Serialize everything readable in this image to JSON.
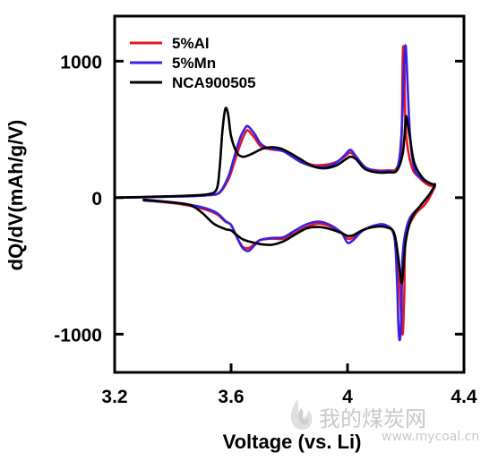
{
  "chart_data": {
    "type": "line",
    "xlabel": "Voltage (vs. Li)",
    "ylabel": "dQ/dV(mAh/g/V)",
    "xlim": [
      3.2,
      4.4
    ],
    "ylim": [
      -1280,
      1330
    ],
    "x_ticks": [
      3.2,
      3.6,
      4.0,
      4.4
    ],
    "x_tick_labels": [
      "3.2",
      "3.6",
      "4",
      "4.4"
    ],
    "y_ticks": [
      -1000,
      0,
      1000
    ],
    "y_tick_labels": [
      "-1000",
      "0",
      "1000"
    ],
    "grid": false,
    "legend_position": "top-left",
    "series": [
      {
        "name": "5%Al",
        "color": "#e8141e",
        "charge": [
          [
            3.2,
            0
          ],
          [
            3.35,
            5
          ],
          [
            3.45,
            10
          ],
          [
            3.52,
            18
          ],
          [
            3.56,
            35
          ],
          [
            3.59,
            130
          ],
          [
            3.61,
            250
          ],
          [
            3.63,
            380
          ],
          [
            3.65,
            480
          ],
          [
            3.66,
            490
          ],
          [
            3.68,
            440
          ],
          [
            3.7,
            380
          ],
          [
            3.72,
            360
          ],
          [
            3.75,
            350
          ],
          [
            3.78,
            340
          ],
          [
            3.81,
            310
          ],
          [
            3.84,
            270
          ],
          [
            3.88,
            240
          ],
          [
            3.92,
            240
          ],
          [
            3.96,
            260
          ],
          [
            3.99,
            300
          ],
          [
            4.01,
            330
          ],
          [
            4.03,
            290
          ],
          [
            4.06,
            220
          ],
          [
            4.1,
            200
          ],
          [
            4.14,
            200
          ],
          [
            4.17,
            220
          ],
          [
            4.185,
            400
          ],
          [
            4.19,
            1060
          ],
          [
            4.195,
            1000
          ],
          [
            4.2,
            500
          ],
          [
            4.22,
            230
          ],
          [
            4.25,
            140
          ],
          [
            4.28,
            90
          ],
          [
            4.3,
            90
          ]
        ],
        "discharge": [
          [
            3.3,
            -20
          ],
          [
            3.42,
            -45
          ],
          [
            3.5,
            -80
          ],
          [
            3.55,
            -120
          ],
          [
            3.58,
            -175
          ],
          [
            3.6,
            -200
          ],
          [
            3.62,
            -290
          ],
          [
            3.64,
            -360
          ],
          [
            3.66,
            -370
          ],
          [
            3.68,
            -340
          ],
          [
            3.7,
            -310
          ],
          [
            3.74,
            -300
          ],
          [
            3.78,
            -300
          ],
          [
            3.82,
            -260
          ],
          [
            3.86,
            -215
          ],
          [
            3.9,
            -190
          ],
          [
            3.94,
            -210
          ],
          [
            3.98,
            -255
          ],
          [
            4.0,
            -300
          ],
          [
            4.02,
            -290
          ],
          [
            4.05,
            -240
          ],
          [
            4.09,
            -210
          ],
          [
            4.13,
            -210
          ],
          [
            4.16,
            -260
          ],
          [
            4.175,
            -500
          ],
          [
            4.185,
            -900
          ],
          [
            4.19,
            -990
          ],
          [
            4.195,
            -700
          ],
          [
            4.2,
            -300
          ],
          [
            4.23,
            -130
          ],
          [
            4.27,
            -40
          ],
          [
            4.3,
            80
          ]
        ]
      },
      {
        "name": "5%Mn",
        "color": "#3a1fe6",
        "charge": [
          [
            3.2,
            0
          ],
          [
            3.35,
            5
          ],
          [
            3.45,
            10
          ],
          [
            3.52,
            18
          ],
          [
            3.56,
            38
          ],
          [
            3.59,
            150
          ],
          [
            3.61,
            290
          ],
          [
            3.63,
            430
          ],
          [
            3.65,
            515
          ],
          [
            3.66,
            520
          ],
          [
            3.68,
            470
          ],
          [
            3.7,
            400
          ],
          [
            3.72,
            370
          ],
          [
            3.75,
            355
          ],
          [
            3.78,
            340
          ],
          [
            3.81,
            300
          ],
          [
            3.84,
            260
          ],
          [
            3.88,
            230
          ],
          [
            3.92,
            225
          ],
          [
            3.96,
            255
          ],
          [
            3.99,
            310
          ],
          [
            4.01,
            350
          ],
          [
            4.03,
            300
          ],
          [
            4.06,
            225
          ],
          [
            4.1,
            195
          ],
          [
            4.14,
            195
          ],
          [
            4.17,
            210
          ],
          [
            4.185,
            450
          ],
          [
            4.195,
            1000
          ],
          [
            4.2,
            1110
          ],
          [
            4.205,
            900
          ],
          [
            4.215,
            450
          ],
          [
            4.23,
            210
          ],
          [
            4.26,
            130
          ],
          [
            4.29,
            100
          ],
          [
            4.3,
            95
          ]
        ],
        "discharge": [
          [
            3.3,
            -20
          ],
          [
            3.42,
            -40
          ],
          [
            3.5,
            -70
          ],
          [
            3.55,
            -110
          ],
          [
            3.58,
            -170
          ],
          [
            3.6,
            -200
          ],
          [
            3.62,
            -290
          ],
          [
            3.64,
            -370
          ],
          [
            3.66,
            -390
          ],
          [
            3.68,
            -350
          ],
          [
            3.7,
            -310
          ],
          [
            3.74,
            -295
          ],
          [
            3.78,
            -290
          ],
          [
            3.82,
            -240
          ],
          [
            3.86,
            -195
          ],
          [
            3.9,
            -175
          ],
          [
            3.94,
            -200
          ],
          [
            3.98,
            -260
          ],
          [
            4.0,
            -330
          ],
          [
            4.02,
            -310
          ],
          [
            4.05,
            -245
          ],
          [
            4.09,
            -205
          ],
          [
            4.13,
            -200
          ],
          [
            4.16,
            -280
          ],
          [
            4.17,
            -600
          ],
          [
            4.175,
            -950
          ],
          [
            4.18,
            -1040
          ],
          [
            4.185,
            -850
          ],
          [
            4.19,
            -400
          ],
          [
            4.21,
            -170
          ],
          [
            4.25,
            -60
          ],
          [
            4.28,
            20
          ],
          [
            4.3,
            90
          ]
        ]
      },
      {
        "name": "NCA900505",
        "color": "#000000",
        "charge": [
          [
            3.2,
            0
          ],
          [
            3.35,
            8
          ],
          [
            3.45,
            15
          ],
          [
            3.52,
            25
          ],
          [
            3.55,
            60
          ],
          [
            3.56,
            200
          ],
          [
            3.57,
            480
          ],
          [
            3.58,
            650
          ],
          [
            3.59,
            610
          ],
          [
            3.6,
            450
          ],
          [
            3.62,
            330
          ],
          [
            3.64,
            300
          ],
          [
            3.66,
            310
          ],
          [
            3.68,
            330
          ],
          [
            3.71,
            360
          ],
          [
            3.74,
            370
          ],
          [
            3.77,
            360
          ],
          [
            3.8,
            330
          ],
          [
            3.84,
            280
          ],
          [
            3.88,
            230
          ],
          [
            3.92,
            215
          ],
          [
            3.96,
            235
          ],
          [
            3.99,
            275
          ],
          [
            4.01,
            300
          ],
          [
            4.03,
            280
          ],
          [
            4.06,
            210
          ],
          [
            4.1,
            185
          ],
          [
            4.14,
            185
          ],
          [
            4.17,
            200
          ],
          [
            4.19,
            330
          ],
          [
            4.2,
            580
          ],
          [
            4.205,
            560
          ],
          [
            4.215,
            430
          ],
          [
            4.23,
            250
          ],
          [
            4.26,
            140
          ],
          [
            4.29,
            100
          ],
          [
            4.3,
            100
          ]
        ],
        "discharge": [
          [
            3.3,
            -15
          ],
          [
            3.4,
            -35
          ],
          [
            3.46,
            -55
          ],
          [
            3.5,
            -110
          ],
          [
            3.54,
            -190
          ],
          [
            3.58,
            -230
          ],
          [
            3.6,
            -240
          ],
          [
            3.62,
            -275
          ],
          [
            3.64,
            -305
          ],
          [
            3.66,
            -320
          ],
          [
            3.7,
            -340
          ],
          [
            3.74,
            -345
          ],
          [
            3.78,
            -320
          ],
          [
            3.82,
            -270
          ],
          [
            3.86,
            -225
          ],
          [
            3.9,
            -215
          ],
          [
            3.94,
            -230
          ],
          [
            3.98,
            -260
          ],
          [
            4.0,
            -280
          ],
          [
            4.02,
            -275
          ],
          [
            4.05,
            -240
          ],
          [
            4.09,
            -215
          ],
          [
            4.13,
            -215
          ],
          [
            4.16,
            -260
          ],
          [
            4.175,
            -450
          ],
          [
            4.185,
            -620
          ],
          [
            4.19,
            -560
          ],
          [
            4.2,
            -320
          ],
          [
            4.22,
            -150
          ],
          [
            4.25,
            -60
          ],
          [
            4.28,
            20
          ],
          [
            4.3,
            90
          ]
        ]
      }
    ]
  },
  "watermark": {
    "brand_text": "我的煤炭网",
    "url_text": "www.mycoal.cn"
  }
}
